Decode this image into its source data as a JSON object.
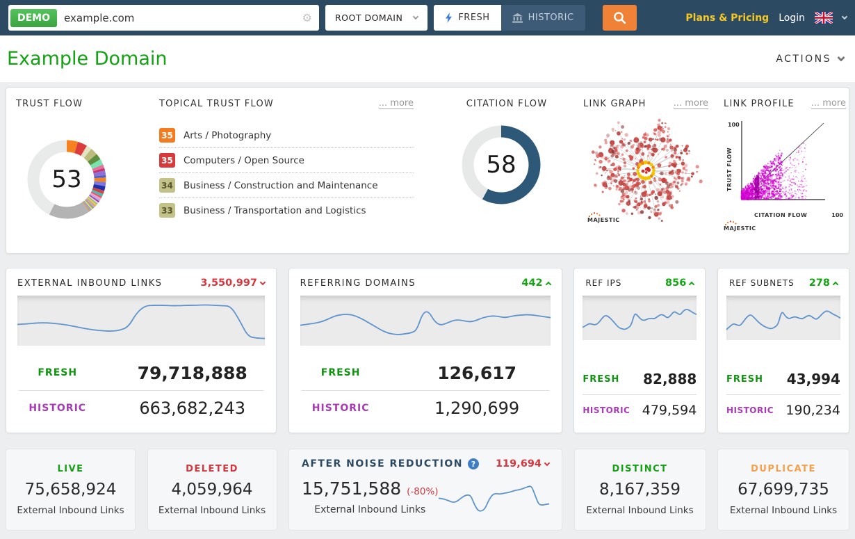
{
  "navbar": {
    "demo_label": "DEMO",
    "search_value": "example.com",
    "root_domain_label": "ROOT DOMAIN",
    "fresh_label": "FRESH",
    "historic_label": "HISTORIC",
    "plans_pricing": "Plans & Pricing",
    "login": "Login",
    "accent_orange": "#ef8236",
    "navbar_color": "#2d4a63"
  },
  "header": {
    "title": "Example Domain",
    "title_color": "#12a212",
    "actions_label": "ACTIONS"
  },
  "overview": {
    "trust_flow": {
      "label": "TRUST FLOW",
      "value": "53",
      "segments": [
        {
          "c": "#f5821f",
          "v": 4.6
        },
        {
          "c": "#dd3c3c",
          "v": 4.0
        },
        {
          "c": "#e4e4c4",
          "v": 2.2
        },
        {
          "c": "#b9bc7c",
          "v": 3.0
        },
        {
          "c": "#5d8f3e",
          "v": 2.6
        },
        {
          "c": "#79e3ae",
          "v": 2.4
        },
        {
          "c": "#e4729e",
          "v": 1.5
        },
        {
          "c": "#c2336e",
          "v": 1.0
        },
        {
          "c": "#8f6fd4",
          "v": 1.9
        },
        {
          "c": "#4a5fd0",
          "v": 1.0
        },
        {
          "c": "#f5821f",
          "v": 1.9
        },
        {
          "c": "#7d78dd",
          "v": 1.7
        },
        {
          "c": "#2030a8",
          "v": 1.9
        },
        {
          "c": "#d24444",
          "v": 1.4
        },
        {
          "c": "#3fc0b2",
          "v": 1.1
        },
        {
          "c": "#e8566a",
          "v": 0.8
        },
        {
          "c": "#f2a0c8",
          "v": 0.7
        },
        {
          "c": "#b9a3e3",
          "v": 0.7
        },
        {
          "c": "#8e44ad",
          "v": 0.6
        },
        {
          "c": "#f7c8dc",
          "v": 0.6
        },
        {
          "c": "#86c773",
          "v": 0.6
        },
        {
          "c": "#e3d44f",
          "v": 0.5
        },
        {
          "c": "#f09a58",
          "v": 0.5
        },
        {
          "c": "#8fb9e6",
          "v": 0.5
        },
        {
          "c": "#e57f7f",
          "v": 0.5
        },
        {
          "c": "#62c462",
          "v": 0.4
        },
        {
          "c": "#f4ee6c",
          "v": 0.4
        },
        {
          "c": "#cd6fd1",
          "v": 0.4
        },
        {
          "c": "#5bc8e8",
          "v": 0.4
        },
        {
          "c": "#f5821f",
          "v": 0.4
        },
        {
          "c": "#b3b3b3",
          "v": 17.2
        },
        {
          "c": "#e9eaea",
          "v": 42.6
        }
      ]
    },
    "topical_trust_flow": {
      "label": "TOPICAL TRUST FLOW",
      "more_label": "... more",
      "items": [
        {
          "score": "35",
          "topic": "Arts / Photography",
          "color": "#f47b20",
          "text_color": "#ffffff"
        },
        {
          "score": "35",
          "topic": "Computers / Open Source",
          "color": "#d63a3a",
          "text_color": "#ffffff"
        },
        {
          "score": "34",
          "topic": "Business / Construction and Maintenance",
          "color": "#c2c289",
          "text_color": "#55552e"
        },
        {
          "score": "33",
          "topic": "Business / Transportation and Logistics",
          "color": "#c2c289",
          "text_color": "#55552e"
        }
      ]
    },
    "citation_flow": {
      "label": "CITATION FLOW",
      "value": "58",
      "segments": [
        {
          "c": "#2e5878",
          "v": 58
        },
        {
          "c": "#e7e8e8",
          "v": 42
        }
      ]
    },
    "link_graph": {
      "label": "LINK GRAPH",
      "more_label": "... more",
      "brand": "MAJESTIC"
    },
    "link_profile": {
      "label": "LINK PROFILE",
      "more_label": "... more",
      "brand": "MAJESTIC",
      "y_axis": "TRUST FLOW",
      "x_axis": "CITATION FLOW",
      "y_max": "100",
      "x_max": "100",
      "point_color": "#cc00cc"
    }
  },
  "metrics": [
    {
      "title": "EXTERNAL INBOUND LINKS",
      "change": "3,550,997",
      "direction": "down",
      "fresh_label": "FRESH",
      "fresh": "79,718,888",
      "historic_label": "HISTORIC",
      "historic": "663,682,243",
      "spark": [
        44,
        45,
        47,
        48,
        47,
        45,
        42,
        38,
        34,
        31,
        29,
        28,
        30,
        38,
        72,
        88,
        89,
        89,
        88,
        88,
        89,
        89,
        90,
        89,
        88,
        87,
        55,
        16,
        12,
        11
      ]
    },
    {
      "title": "REFERRING DOMAINS",
      "change": "442",
      "direction": "up",
      "fresh_label": "FRESH",
      "fresh": "126,617",
      "historic_label": "HISTORIC",
      "historic": "1,290,699",
      "spark": [
        42,
        44,
        46,
        48,
        52,
        58,
        64,
        67,
        68,
        66,
        61,
        54,
        46,
        38,
        30,
        24,
        21,
        20,
        22,
        24,
        30,
        70,
        76,
        52,
        42,
        46,
        52,
        55,
        53,
        50,
        52,
        58,
        62,
        64,
        63,
        60,
        62,
        65,
        66,
        67,
        66,
        64,
        62,
        60
      ]
    },
    {
      "title": "REF IPS",
      "change": "856",
      "direction": "up",
      "fresh_label": "FRESH",
      "fresh": "82,888",
      "historic_label": "HISTORIC",
      "historic": "479,594",
      "spark": [
        28,
        32,
        38,
        36,
        34,
        40,
        52,
        60,
        56,
        48,
        38,
        28,
        24,
        22,
        26,
        34,
        66,
        58,
        48,
        46,
        50,
        52,
        50,
        56,
        62,
        60,
        52,
        58,
        70,
        66,
        60,
        72,
        76,
        72,
        66,
        62
      ]
    },
    {
      "title": "REF SUBNETS",
      "change": "278",
      "direction": "up",
      "fresh_label": "FRESH",
      "fresh": "43,994",
      "historic_label": "HISTORIC",
      "historic": "190,234",
      "spark": [
        22,
        30,
        38,
        34,
        32,
        44,
        56,
        62,
        54,
        44,
        36,
        30,
        26,
        24,
        28,
        36,
        72,
        58,
        50,
        54,
        56,
        52,
        50,
        56,
        60,
        54,
        48,
        56,
        66,
        72,
        68,
        62,
        58,
        52
      ]
    }
  ],
  "summary": [
    {
      "title": "LIVE",
      "color": "#16a016",
      "value": "75,658,924",
      "sub": "External Inbound Links"
    },
    {
      "title": "DELETED",
      "color": "#d4373e",
      "value": "4,059,964",
      "sub": "External Inbound Links"
    },
    {
      "title": "AFTER NOISE REDUCTION",
      "change": "119,694",
      "direction": "down",
      "value": "15,751,588",
      "delta": "(-80%)",
      "sub": "External Inbound Links",
      "spark": [
        48,
        47,
        44,
        40,
        36,
        38,
        46,
        54,
        58,
        56,
        30,
        12,
        10,
        18,
        42,
        58,
        62,
        60,
        62,
        64,
        66,
        70,
        72,
        74,
        78,
        82,
        84,
        56,
        30,
        28,
        30,
        32
      ]
    },
    {
      "title": "DISTINCT",
      "color": "#16a016",
      "value": "8,167,359",
      "sub": "External Inbound Links"
    },
    {
      "title": "DUPLICATE",
      "color": "#f5a04d",
      "value": "67,699,735",
      "sub": "External Inbound Links"
    }
  ]
}
